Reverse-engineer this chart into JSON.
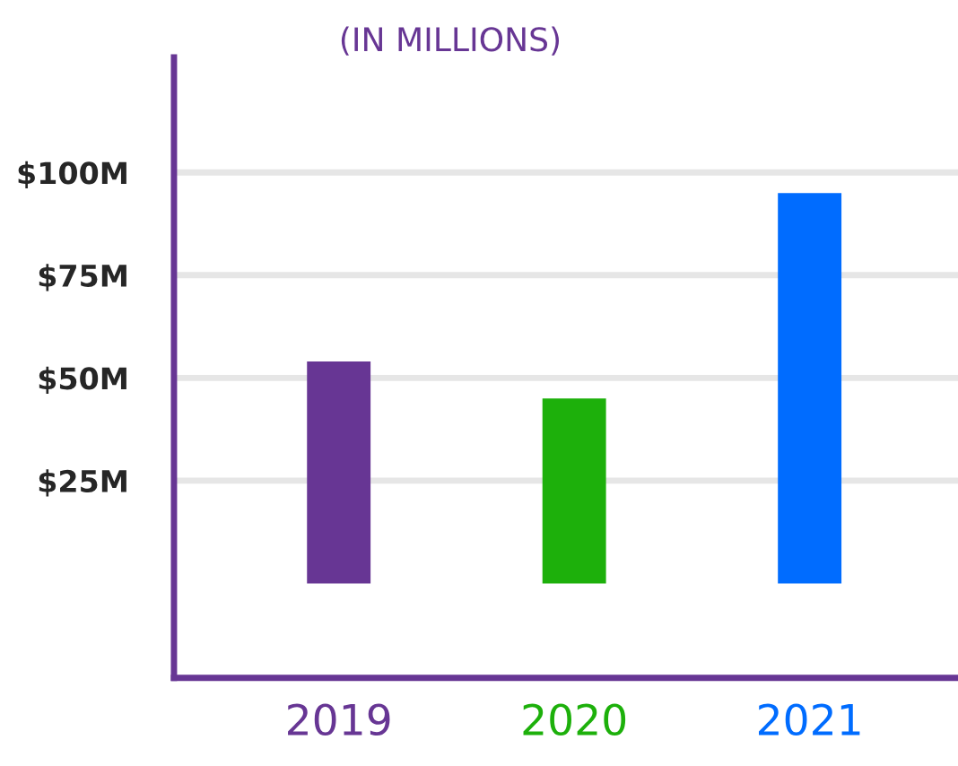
{
  "chart_data": {
    "type": "bar",
    "title": "(IN MILLIONS)",
    "categories": [
      "2019",
      "2020",
      "2021"
    ],
    "values": [
      54,
      45,
      95
    ],
    "colors": [
      "#673694",
      "#1db00b",
      "#006cff"
    ],
    "ylim": [
      -23,
      128
    ],
    "yticks": [
      {
        "value": 25,
        "label": "$25M"
      },
      {
        "value": 50,
        "label": "$50M"
      },
      {
        "value": 75,
        "label": "$75M"
      },
      {
        "value": 100,
        "label": "$100M"
      }
    ],
    "grid": "y"
  }
}
